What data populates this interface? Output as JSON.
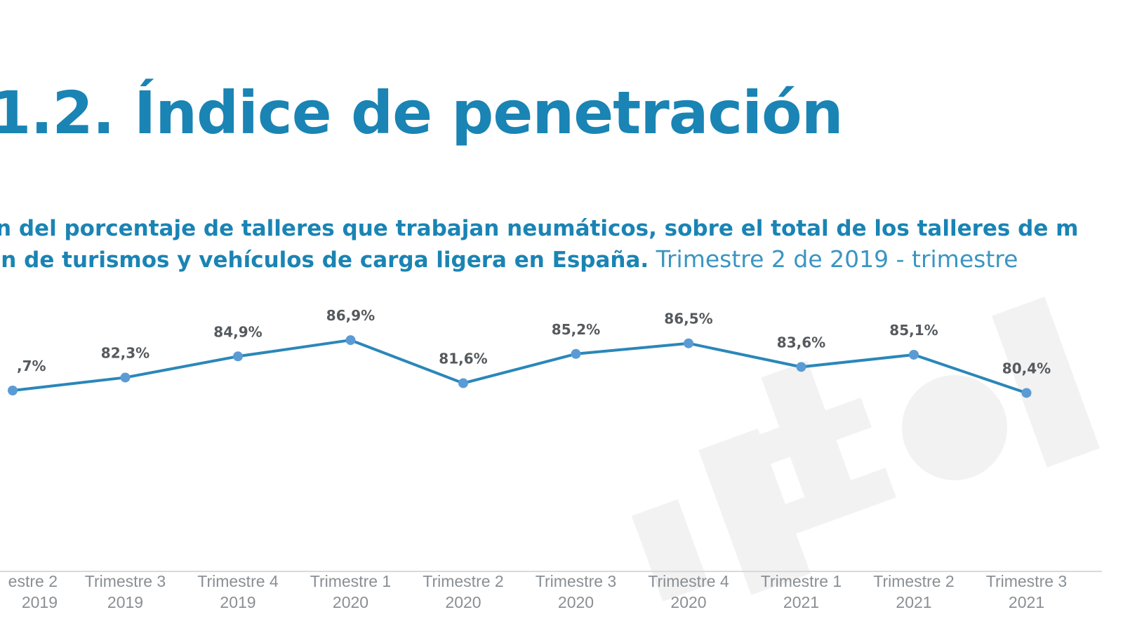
{
  "page": {
    "title": "1.2. Índice de penetración",
    "subtitle_line1": "n del porcentaje de talleres que trabajan neumáticos, sobre el total de los talleres de m",
    "subtitle_line2_bold": "ón de turismos y vehículos de carga ligera en España.",
    "subtitle_line2_light": " Trimestre 2 de 2019 - trimestre"
  },
  "chart_data": {
    "type": "line",
    "categories": [
      [
        "estre 2",
        "2019"
      ],
      [
        "Trimestre 3",
        "2019"
      ],
      [
        "Trimestre 4",
        "2019"
      ],
      [
        "Trimestre 1",
        "2020"
      ],
      [
        "Trimestre 2",
        "2020"
      ],
      [
        "Trimestre 3",
        "2020"
      ],
      [
        "Trimestre 4",
        "2020"
      ],
      [
        "Trimestre 1",
        "2021"
      ],
      [
        "Trimestre 2",
        "2021"
      ],
      [
        "Trimestre 3",
        "2021"
      ]
    ],
    "series": [
      {
        "values": [
          80.7,
          82.3,
          84.9,
          86.9,
          81.6,
          85.2,
          86.5,
          83.6,
          85.1,
          80.4
        ],
        "labels": [
          ",7%",
          "82,3%",
          "84,9%",
          "86,9%",
          "81,6%",
          "85,2%",
          "86,5%",
          "83,6%",
          "85,1%",
          "80,4%"
        ],
        "color": "#2a87b9"
      }
    ],
    "marker_color": "#5b9bd5",
    "axis_line_color": "#d9d9d9",
    "grid": false
  }
}
